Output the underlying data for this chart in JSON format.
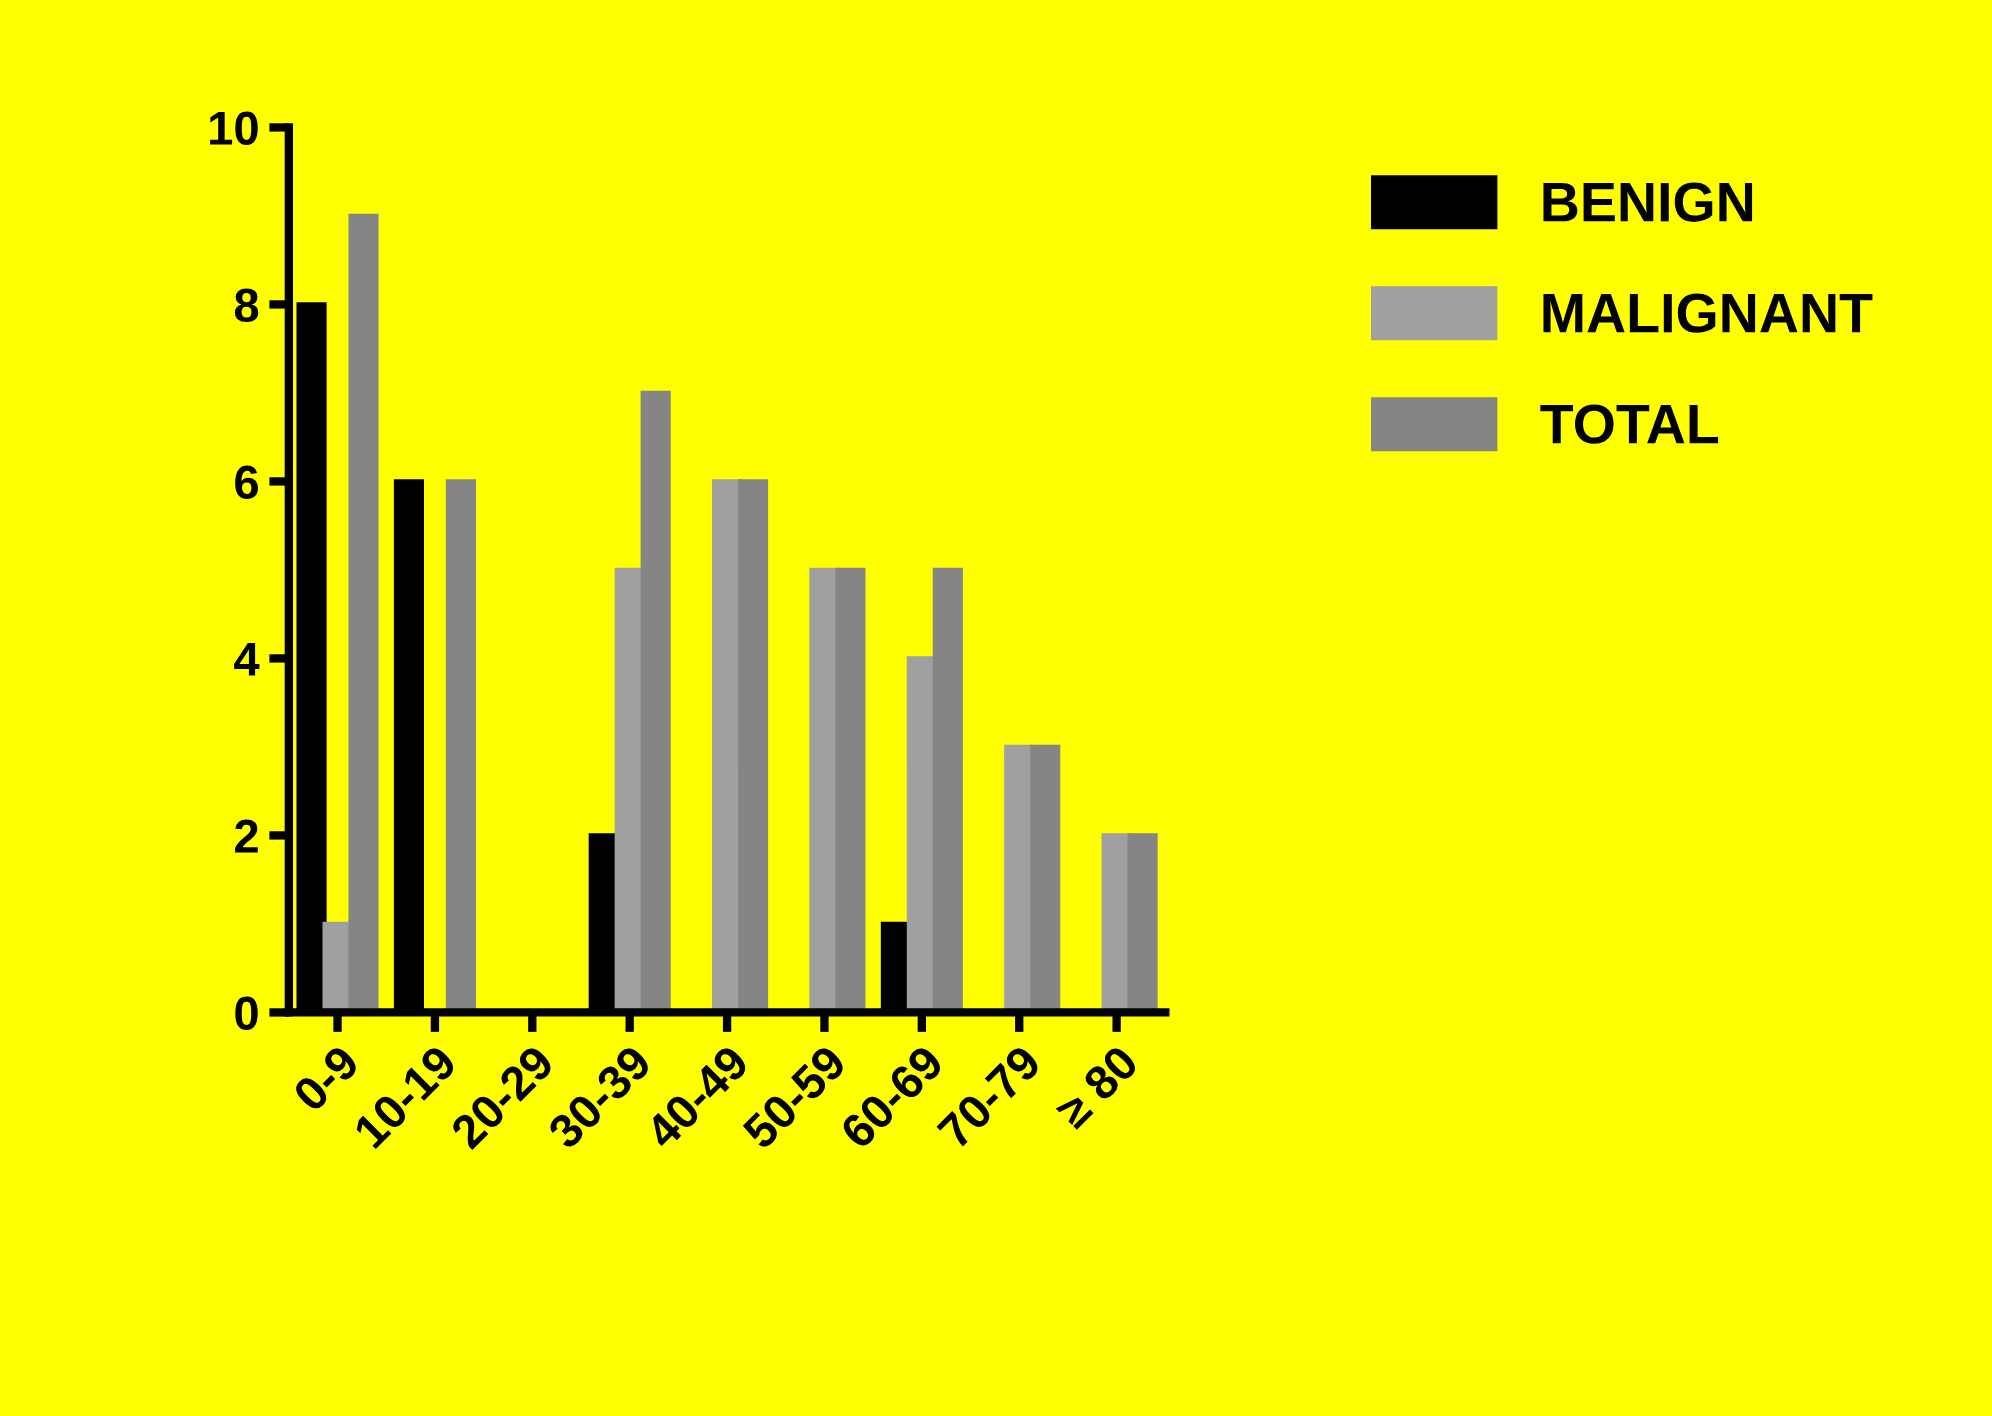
{
  "chart_data": {
    "type": "bar",
    "categories": [
      "0-9",
      "10-19",
      "20-29",
      "30-39",
      "40-49",
      "50-59",
      "60-69",
      "70-79",
      "≥ 80"
    ],
    "series": [
      {
        "name": "BENIGN",
        "color": "#000000",
        "values": [
          8,
          6,
          0,
          2,
          0,
          0,
          1,
          0,
          0
        ]
      },
      {
        "name": "MALIGNANT",
        "color": "#a0a0a0",
        "values": [
          1,
          0,
          0,
          5,
          6,
          5,
          4,
          3,
          2
        ]
      },
      {
        "name": "TOTAL",
        "color": "#858585",
        "values": [
          9,
          6,
          0,
          7,
          6,
          5,
          5,
          3,
          2
        ]
      }
    ],
    "ylim": [
      0,
      10
    ],
    "yticks": [
      0,
      2,
      4,
      6,
      8,
      10
    ],
    "grid": false,
    "legend": "top right"
  }
}
